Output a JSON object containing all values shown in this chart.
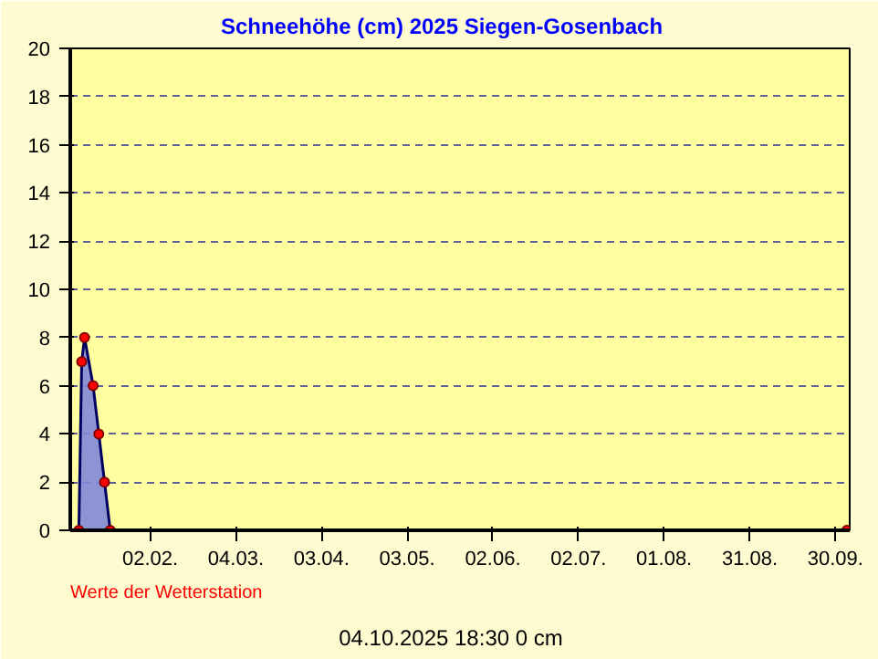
{
  "chart_data": {
    "type": "area",
    "title": "Schneehöhe (cm)  2025      Siegen-Gosenbach",
    "x": [
      "2025-01-08",
      "2025-01-09",
      "2025-01-10",
      "2025-01-13",
      "2025-01-15",
      "2025-01-17",
      "2025-01-19",
      "2025-10-04"
    ],
    "series": [
      {
        "color": "#8088d8",
        "values": [
          0,
          7,
          8,
          6,
          4,
          2,
          0,
          0
        ]
      }
    ],
    "xlim": [
      "2025-01-05",
      "2025-10-05"
    ],
    "xticks": [
      {
        "value": "2025-02-02",
        "label": "02.02."
      },
      {
        "value": "2025-03-04",
        "label": "04.03."
      },
      {
        "value": "2025-04-03",
        "label": "03.04."
      },
      {
        "value": "2025-05-03",
        "label": "03.05."
      },
      {
        "value": "2025-06-02",
        "label": "02.06."
      },
      {
        "value": "2025-07-02",
        "label": "02.07."
      },
      {
        "value": "2025-08-01",
        "label": "01.08."
      },
      {
        "value": "2025-08-31",
        "label": "31.08."
      },
      {
        "value": "2025-09-30",
        "label": "30.09."
      }
    ],
    "ylim": [
      0,
      20
    ],
    "yticks": [
      0,
      2,
      4,
      6,
      8,
      10,
      12,
      14,
      16,
      18,
      20
    ],
    "grid": true,
    "marker": "circle",
    "annotations": [
      "04.10.2025  18:30   0 cm",
      "Werte der Wetterstation"
    ]
  }
}
